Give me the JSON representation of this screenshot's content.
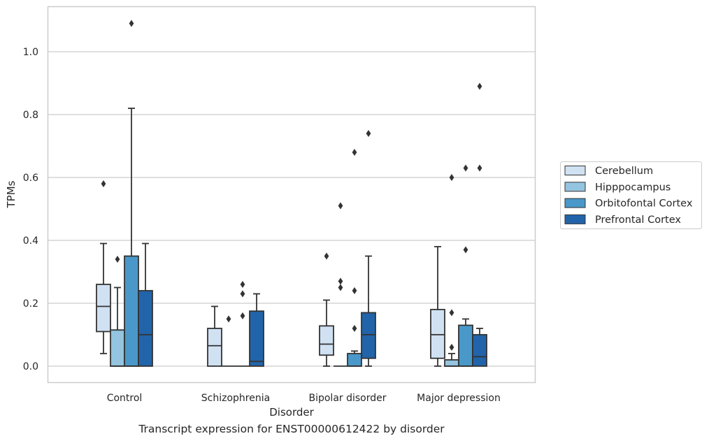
{
  "caption": "Transcript expression for ENST00000612422 by disorder",
  "chart_data": {
    "type": "box",
    "xlabel": "Disorder",
    "ylabel": "TPMs",
    "ylim": [
      -0.052,
      1.148
    ],
    "yticks": [
      "0.0",
      "0.2",
      "0.4",
      "0.6",
      "0.8",
      "1.0"
    ],
    "grid": true,
    "legend_position": "right",
    "categories": [
      "Control",
      "Schizophrenia",
      "Bipolar disorder",
      "Major depression"
    ],
    "series": [
      {
        "name": "Cerebellum",
        "color": "#d0e1f2",
        "boxes": [
          {
            "q1": 0.11,
            "median": 0.19,
            "q3": 0.26,
            "whisker_low": 0.04,
            "whisker_high": 0.39,
            "outliers": [
              0.58
            ]
          },
          {
            "q1": 0.0,
            "median": 0.065,
            "q3": 0.12,
            "whisker_low": 0.0,
            "whisker_high": 0.19,
            "outliers": []
          },
          {
            "q1": 0.035,
            "median": 0.07,
            "q3": 0.128,
            "whisker_low": 0.0,
            "whisker_high": 0.21,
            "outliers": [
              0.35
            ]
          },
          {
            "q1": 0.025,
            "median": 0.1,
            "q3": 0.18,
            "whisker_low": 0.0,
            "whisker_high": 0.38,
            "outliers": []
          }
        ]
      },
      {
        "name": "Hipppocampus",
        "color": "#94c4df",
        "boxes": [
          {
            "q1": 0.0,
            "median": 0.0,
            "q3": 0.115,
            "whisker_low": 0.0,
            "whisker_high": 0.25,
            "outliers": [
              0.34
            ]
          },
          {
            "q1": 0.0,
            "median": 0.0,
            "q3": 0.0,
            "whisker_low": 0.0,
            "whisker_high": 0.0,
            "outliers": [
              0.15
            ]
          },
          {
            "q1": 0.0,
            "median": 0.0,
            "q3": 0.0,
            "whisker_low": 0.0,
            "whisker_high": 0.0,
            "outliers": [
              0.25,
              0.27,
              0.51
            ]
          },
          {
            "q1": 0.0,
            "median": 0.0,
            "q3": 0.02,
            "whisker_low": 0.0,
            "whisker_high": 0.04,
            "outliers": [
              0.06,
              0.17,
              0.6
            ]
          }
        ]
      },
      {
        "name": "Orbitofontal Cortex",
        "color": "#4a98c9",
        "boxes": [
          {
            "q1": 0.0,
            "median": 0.0,
            "q3": 0.35,
            "whisker_low": 0.0,
            "whisker_high": 0.82,
            "outliers": [
              1.09
            ]
          },
          {
            "q1": 0.0,
            "median": 0.0,
            "q3": 0.0,
            "whisker_low": 0.0,
            "whisker_high": 0.0,
            "outliers": [
              0.16,
              0.23,
              0.26
            ]
          },
          {
            "q1": 0.0,
            "median": 0.0,
            "q3": 0.04,
            "whisker_low": 0.0,
            "whisker_high": 0.048,
            "outliers": [
              0.12,
              0.24,
              0.68
            ]
          },
          {
            "q1": 0.0,
            "median": 0.0,
            "q3": 0.13,
            "whisker_low": 0.0,
            "whisker_high": 0.15,
            "outliers": [
              0.37,
              0.63
            ]
          }
        ]
      },
      {
        "name": "Prefrontal Cortex",
        "color": "#2264aa",
        "boxes": [
          {
            "q1": 0.0,
            "median": 0.1,
            "q3": 0.24,
            "whisker_low": 0.0,
            "whisker_high": 0.39,
            "outliers": []
          },
          {
            "q1": 0.0,
            "median": 0.015,
            "q3": 0.175,
            "whisker_low": 0.0,
            "whisker_high": 0.23,
            "outliers": []
          },
          {
            "q1": 0.025,
            "median": 0.1,
            "q3": 0.17,
            "whisker_low": 0.0,
            "whisker_high": 0.35,
            "outliers": [
              0.74
            ]
          },
          {
            "q1": 0.0,
            "median": 0.03,
            "q3": 0.1,
            "whisker_low": 0.0,
            "whisker_high": 0.12,
            "outliers": [
              0.63,
              0.89
            ]
          }
        ]
      }
    ]
  }
}
